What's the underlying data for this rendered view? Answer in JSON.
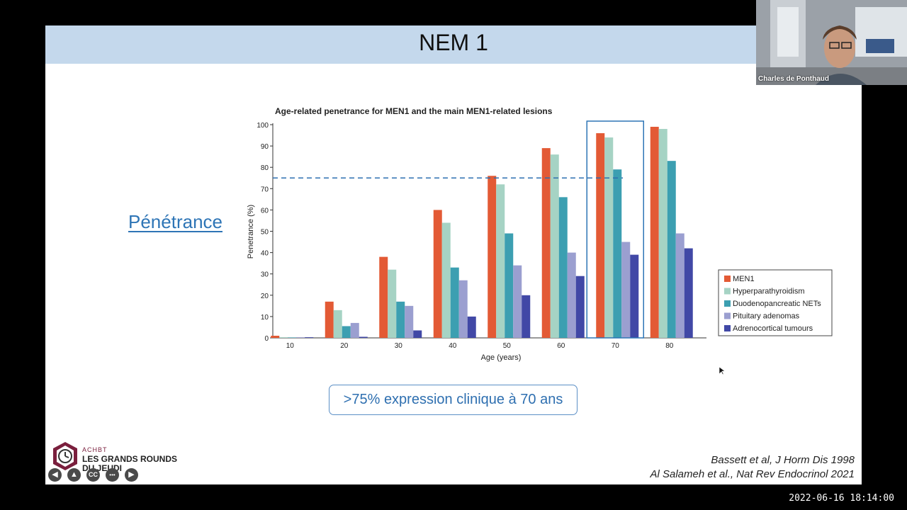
{
  "slide": {
    "title": "NEM 1",
    "side_heading": "Pénétrance",
    "callout": ">75% expression clinique à 70 ans",
    "citations": [
      "Bassett et al, J Horm Dis 1998",
      "Al Salameh et al., Nat Rev Endocrinol 2021"
    ]
  },
  "logo": {
    "small_text": "ACHBT",
    "text": "LES GRANDS ROUNDS DU JEUDI"
  },
  "nav_controls": [
    "back-icon",
    "pointer-icon",
    "closed-captions-icon",
    "more-icon",
    "forward-icon"
  ],
  "nav_labels": {
    "captions": "CC",
    "more": "•••"
  },
  "webcam": {
    "name": "Charles de Ponthaud"
  },
  "timestamp": "2022-06-16  18:14:00",
  "chart_data": {
    "type": "bar",
    "title": "Age-related penetrance for MEN1 and the main MEN1-related lesions",
    "xlabel": "Age (years)",
    "ylabel": "Penetrance (%)",
    "ylim": [
      0,
      100
    ],
    "yticks": [
      0,
      10,
      20,
      30,
      40,
      50,
      60,
      70,
      80,
      90,
      100
    ],
    "categories": [
      "10",
      "20",
      "30",
      "40",
      "50",
      "60",
      "70",
      "80"
    ],
    "series": [
      {
        "name": "MEN1",
        "color": "#e35a35",
        "values": [
          1,
          17,
          38,
          60,
          76,
          89,
          96,
          99
        ]
      },
      {
        "name": "Hyperparathyroidism",
        "color": "#a6d3c4",
        "values": [
          0.3,
          13,
          32,
          54,
          72,
          86,
          94,
          98
        ]
      },
      {
        "name": "Duodenopancreatic NETs",
        "color": "#3c9fb1",
        "values": [
          0.2,
          5.5,
          17,
          33,
          49,
          66,
          79,
          83
        ]
      },
      {
        "name": "Pituitary adenomas",
        "color": "#9b9fd0",
        "values": [
          0.3,
          7,
          15,
          27,
          34,
          40,
          45,
          49
        ]
      },
      {
        "name": "Adrenocortical tumours",
        "color": "#4148a6",
        "values": [
          0.3,
          0.5,
          3.5,
          10,
          20,
          29,
          39,
          42
        ]
      }
    ],
    "reference_line": 75,
    "highlight_category": "70",
    "legend_position": "right"
  }
}
